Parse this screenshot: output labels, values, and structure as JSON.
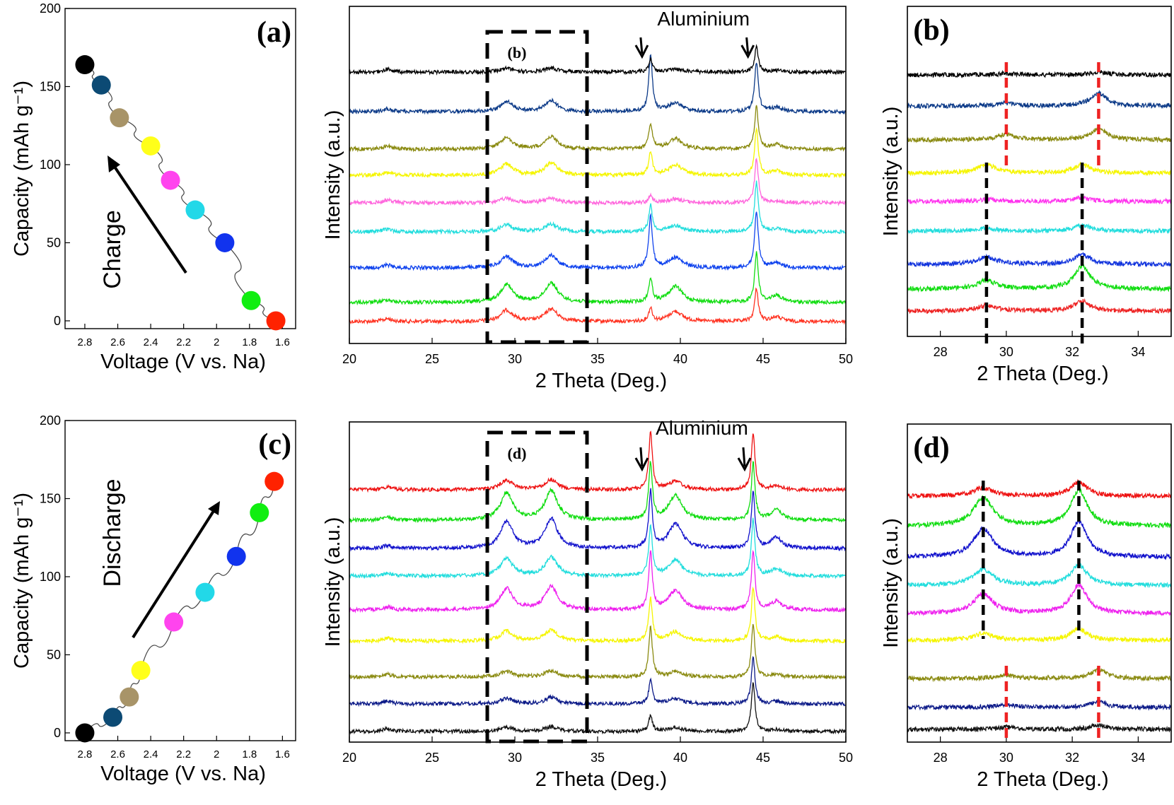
{
  "chart_data": [
    {
      "id": "a",
      "type": "scatter",
      "panel_label": "(a)",
      "xlabel": "Voltage (V vs. Na)",
      "ylabel": "Capacity (mAh g⁻¹)",
      "xlim": [
        2.92,
        1.52
      ],
      "ylim": [
        -5,
        200
      ],
      "xticks": [
        2.8,
        2.6,
        2.4,
        2.2,
        2,
        1.8,
        1.6
      ],
      "yticks": [
        0,
        50,
        100,
        150,
        200
      ],
      "arrow_label": "Charge",
      "points": [
        {
          "v": 2.8,
          "c": 164,
          "color": "#000000"
        },
        {
          "v": 2.7,
          "c": 151,
          "color": "#0c4a74"
        },
        {
          "v": 2.59,
          "c": 130,
          "color": "#a89468"
        },
        {
          "v": 2.4,
          "c": 112,
          "color": "#ffff1a"
        },
        {
          "v": 2.28,
          "c": 90,
          "color": "#ff44ee"
        },
        {
          "v": 2.13,
          "c": 71,
          "color": "#22d8e8"
        },
        {
          "v": 1.95,
          "c": 50,
          "color": "#1133ee"
        },
        {
          "v": 1.79,
          "c": 13,
          "color": "#11ee11"
        },
        {
          "v": 1.64,
          "c": 0,
          "color": "#ff2200"
        }
      ]
    },
    {
      "id": "c",
      "type": "scatter",
      "panel_label": "(c)",
      "xlabel": "Voltage (V vs. Na)",
      "ylabel": "Capacity (mAh g⁻¹)",
      "xlim": [
        2.92,
        1.52
      ],
      "ylim": [
        -5,
        200
      ],
      "xticks": [
        2.8,
        2.6,
        2.4,
        2.2,
        2,
        1.8,
        1.6
      ],
      "yticks": [
        0,
        50,
        100,
        150,
        200
      ],
      "arrow_label": "Discharge",
      "points": [
        {
          "v": 2.8,
          "c": 0,
          "color": "#000000"
        },
        {
          "v": 2.63,
          "c": 10,
          "color": "#0c4a74"
        },
        {
          "v": 2.53,
          "c": 23,
          "color": "#a89468"
        },
        {
          "v": 2.46,
          "c": 40,
          "color": "#ffff1a"
        },
        {
          "v": 2.26,
          "c": 71,
          "color": "#ff44ee"
        },
        {
          "v": 2.07,
          "c": 90,
          "color": "#22d8e8"
        },
        {
          "v": 1.88,
          "c": 113,
          "color": "#1133ee"
        },
        {
          "v": 1.74,
          "c": 141,
          "color": "#11ee11"
        },
        {
          "v": 1.65,
          "c": 161,
          "color": "#ff2200"
        }
      ]
    },
    {
      "id": "xrd_charge",
      "type": "line",
      "xlabel": "2 Theta (Deg.)",
      "ylabel": "Intensity (a.u.)",
      "xlim": [
        20,
        50
      ],
      "xticks": [
        20,
        25,
        30,
        35,
        40,
        45,
        50
      ],
      "annotation": "Aluminium",
      "aluminium_peaks": [
        38.2,
        44.6
      ],
      "inset_label": "(b)",
      "inset_range": [
        28.3,
        34.3
      ],
      "series_order_top_to_bottom": [
        "#000000",
        "#0c3a88",
        "#8a8a10",
        "#f5f500",
        "#ff66dd",
        "#22dddd",
        "#1144ee",
        "#11dd11",
        "#ff3322"
      ]
    },
    {
      "id": "xrd_discharge",
      "type": "line",
      "xlabel": "2 Theta (Deg.)",
      "ylabel": "Intensity (a.u.)",
      "xlim": [
        20,
        50
      ],
      "xticks": [
        20,
        25,
        30,
        35,
        40,
        45,
        50
      ],
      "annotation": "Aluminium",
      "aluminium_peaks": [
        38.2,
        44.4
      ],
      "inset_label": "(d)",
      "inset_range": [
        28.3,
        34.3
      ],
      "series_order_top_to_bottom": [
        "#ee1111",
        "#11dd11",
        "#1111cc",
        "#22dddd",
        "#ee22ee",
        "#f5f500",
        "#8a8a10",
        "#0c1a88",
        "#111111"
      ]
    },
    {
      "id": "b",
      "type": "line",
      "panel_label": "(b)",
      "xlabel": "2 Theta (Deg.)",
      "ylabel": "Intensity (a.u.)",
      "xlim": [
        27,
        35
      ],
      "xticks": [
        28,
        30,
        32,
        34
      ],
      "red_dashed_lines": [
        30.0,
        32.8
      ],
      "black_dashed_lines": [
        29.4,
        32.3
      ]
    },
    {
      "id": "d",
      "type": "line",
      "panel_label": "(d)",
      "xlabel": "2 Theta (Deg.)",
      "ylabel": "Intensity (a.u.)",
      "xlim": [
        27,
        35
      ],
      "xticks": [
        28,
        30,
        32,
        34
      ],
      "red_dashed_lines": [
        30.0,
        32.8
      ],
      "black_dashed_lines": [
        29.3,
        32.2
      ]
    }
  ]
}
